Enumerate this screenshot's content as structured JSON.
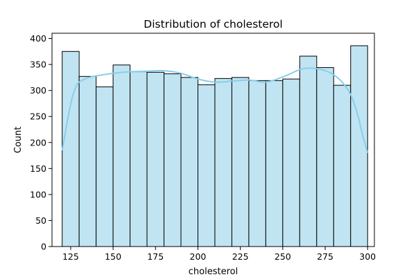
{
  "chart_data": {
    "type": "bar",
    "title": "Distribution of cholesterol",
    "xlabel": "cholesterol",
    "ylabel": "Count",
    "xlim": [
      114,
      304
    ],
    "ylim": [
      0,
      410
    ],
    "xticks": [
      125,
      150,
      175,
      200,
      225,
      250,
      275,
      300
    ],
    "yticks": [
      0,
      50,
      100,
      150,
      200,
      250,
      300,
      350,
      400
    ],
    "grid": false,
    "bar_color": "#c1e4f2",
    "edge_color": "#000000",
    "kde_color": "#87ceeb",
    "bins": [
      {
        "x0": 120,
        "x1": 130,
        "count": 375
      },
      {
        "x0": 130,
        "x1": 140,
        "count": 327
      },
      {
        "x0": 140,
        "x1": 150,
        "count": 307
      },
      {
        "x0": 150,
        "x1": 160,
        "count": 349
      },
      {
        "x0": 160,
        "x1": 170,
        "count": 336
      },
      {
        "x0": 170,
        "x1": 180,
        "count": 335
      },
      {
        "x0": 180,
        "x1": 190,
        "count": 332
      },
      {
        "x0": 190,
        "x1": 200,
        "count": 325
      },
      {
        "x0": 200,
        "x1": 210,
        "count": 311
      },
      {
        "x0": 210,
        "x1": 220,
        "count": 323
      },
      {
        "x0": 220,
        "x1": 230,
        "count": 325
      },
      {
        "x0": 230,
        "x1": 240,
        "count": 319
      },
      {
        "x0": 240,
        "x1": 250,
        "count": 319
      },
      {
        "x0": 250,
        "x1": 260,
        "count": 322
      },
      {
        "x0": 260,
        "x1": 270,
        "count": 366
      },
      {
        "x0": 270,
        "x1": 280,
        "count": 344
      },
      {
        "x0": 280,
        "x1": 290,
        "count": 310
      },
      {
        "x0": 290,
        "x1": 300,
        "count": 386
      }
    ],
    "kde": {
      "x": [
        120,
        122,
        124,
        126,
        128,
        130,
        135,
        140,
        150,
        160,
        170,
        180,
        190,
        200,
        210,
        220,
        230,
        240,
        250,
        260,
        265,
        270,
        275,
        280,
        285,
        290,
        294,
        297,
        300
      ],
      "y": [
        185,
        222,
        258,
        287,
        306,
        316,
        324,
        328,
        333,
        336,
        337,
        338,
        333,
        322,
        316,
        318,
        320,
        316,
        326,
        340,
        343,
        342,
        338,
        330,
        316,
        292,
        255,
        215,
        180
      ]
    }
  }
}
